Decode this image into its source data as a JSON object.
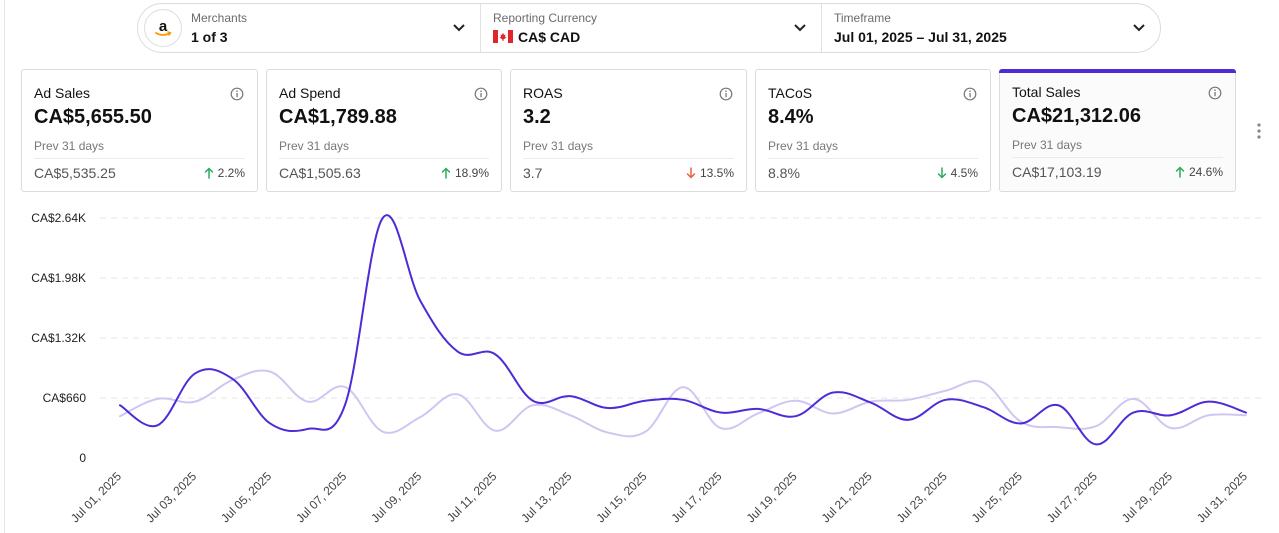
{
  "filters": {
    "merchants": {
      "label": "Merchants",
      "value": "1 of 3"
    },
    "currency": {
      "label": "Reporting Currency",
      "value": "CA$ CAD"
    },
    "timeframe": {
      "label": "Timeframe",
      "value": "Jul 01, 2025 – Jul 31, 2025"
    }
  },
  "cards": [
    {
      "title": "Ad Sales",
      "value": "CA$5,655.50",
      "prev_label": "Prev 31 days",
      "prev_value": "CA$5,535.25",
      "change": "2.2%",
      "direction": "up",
      "change_color": "#2eaa5c",
      "selected": false
    },
    {
      "title": "Ad Spend",
      "value": "CA$1,789.88",
      "prev_label": "Prev 31 days",
      "prev_value": "CA$1,505.63",
      "change": "18.9%",
      "direction": "up",
      "change_color": "#2eaa5c",
      "selected": false
    },
    {
      "title": "ROAS",
      "value": "3.2",
      "prev_label": "Prev 31 days",
      "prev_value": "3.7",
      "change": "13.5%",
      "direction": "down",
      "change_color": "#e8623a",
      "selected": false
    },
    {
      "title": "TACoS",
      "value": "8.4%",
      "prev_label": "Prev 31 days",
      "prev_value": "8.8%",
      "change": "4.5%",
      "direction": "down",
      "change_color": "#2eaa5c",
      "selected": false
    },
    {
      "title": "Total Sales",
      "value": "CA$21,312.06",
      "prev_label": "Prev 31 days",
      "prev_value": "CA$17,103.19",
      "change": "24.6%",
      "direction": "up",
      "change_color": "#2eaa5c",
      "selected": true
    }
  ],
  "colors": {
    "accent": "#4f2bd6",
    "previous_series": "#cfc6f2",
    "gridline": "#e4e4e4"
  },
  "chart_data": {
    "type": "line",
    "title": "",
    "xlabel": "",
    "ylabel": "",
    "ylim": [
      0,
      2640
    ],
    "y_ticks": [
      0,
      660,
      1320,
      1980,
      2640
    ],
    "y_tick_labels": [
      "0",
      "CA$660",
      "CA$1.32K",
      "CA$1.98K",
      "CA$2.64K"
    ],
    "x_tick_labels": [
      "Jul 01, 2025",
      "Jul 03, 2025",
      "Jul 05, 2025",
      "Jul 07, 2025",
      "Jul 09, 2025",
      "Jul 11, 2025",
      "Jul 13, 2025",
      "Jul 15, 2025",
      "Jul 17, 2025",
      "Jul 19, 2025",
      "Jul 21, 2025",
      "Jul 23, 2025",
      "Jul 25, 2025",
      "Jul 27, 2025",
      "Jul 29, 2025",
      "Jul 31, 2025"
    ],
    "categories": [
      "Jul 01",
      "Jul 02",
      "Jul 03",
      "Jul 04",
      "Jul 05",
      "Jul 06",
      "Jul 07",
      "Jul 08",
      "Jul 09",
      "Jul 10",
      "Jul 11",
      "Jul 12",
      "Jul 13",
      "Jul 14",
      "Jul 15",
      "Jul 16",
      "Jul 17",
      "Jul 18",
      "Jul 19",
      "Jul 20",
      "Jul 21",
      "Jul 22",
      "Jul 23",
      "Jul 24",
      "Jul 25",
      "Jul 26",
      "Jul 27",
      "Jul 28",
      "Jul 29",
      "Jul 30",
      "Jul 31"
    ],
    "series": [
      {
        "name": "Total Sales",
        "color": "#4f2bd6",
        "values": [
          580,
          360,
          930,
          870,
          380,
          320,
          590,
          2640,
          1730,
          1170,
          1140,
          630,
          680,
          550,
          630,
          640,
          500,
          540,
          460,
          720,
          610,
          420,
          640,
          560,
          380,
          580,
          150,
          500,
          470,
          620,
          500
        ]
      },
      {
        "name": "Previous Period",
        "color": "#cfc6f2",
        "values": [
          460,
          650,
          620,
          860,
          950,
          620,
          780,
          290,
          450,
          700,
          300,
          580,
          470,
          280,
          290,
          780,
          330,
          490,
          630,
          490,
          620,
          640,
          740,
          830,
          400,
          340,
          350,
          650,
          330,
          470,
          470
        ]
      }
    ]
  }
}
